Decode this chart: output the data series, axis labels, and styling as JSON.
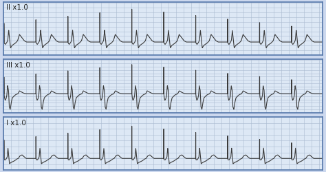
{
  "background_color": "#dde8f5",
  "grid_color": "#aabbd0",
  "line_color": "#3a3a3a",
  "border_color": "#5577aa",
  "labels": [
    "II x1.0",
    "III x1.0",
    "I x1.0"
  ],
  "label_color": "#222222",
  "label_fontsize": 7.5,
  "fig_bg": "#ccd8ee"
}
